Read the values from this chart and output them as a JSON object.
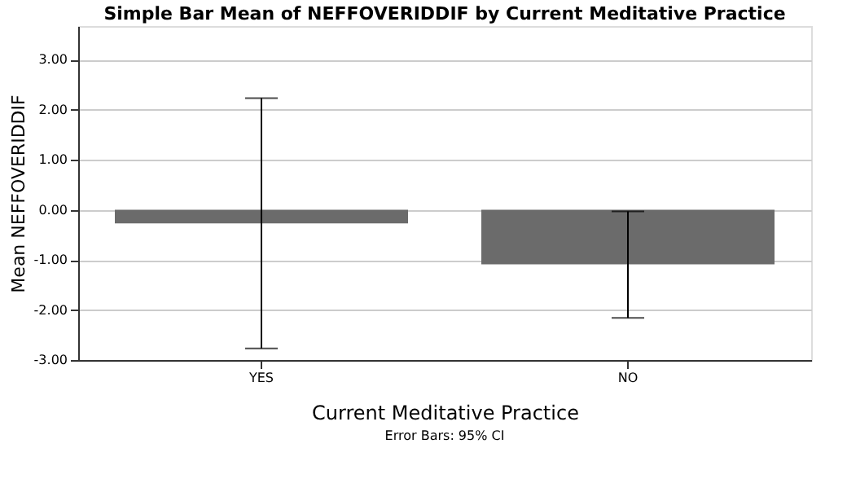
{
  "chart_data": {
    "type": "bar",
    "title": "Simple Bar Mean of NEFFOVERIDDIF by Current Meditative Practice",
    "xlabel": "Current Meditative Practice",
    "ylabel": "Mean NEFFOVERIDDIF",
    "categories": [
      "YES",
      "NO"
    ],
    "series": [
      {
        "color": "#6b6b6b",
        "values": [
          -0.27,
          -1.09
        ],
        "errors": [
          [
            -2.77,
            2.23
          ],
          [
            -2.16,
            -0.03
          ]
        ]
      }
    ],
    "ylim": [
      -3.0,
      3.67
    ],
    "yticks": [
      {
        "value": -3,
        "label": "-3.00"
      },
      {
        "value": -2,
        "label": "-2.00"
      },
      {
        "value": -1,
        "label": "-1.00"
      },
      {
        "value": 0,
        "label": "0.00"
      },
      {
        "value": 1,
        "label": "1.00"
      },
      {
        "value": 2,
        "label": "2.00"
      },
      {
        "value": 3,
        "label": "3.00"
      }
    ],
    "grid": "y",
    "annotations": [
      "Error Bars: 95% CI"
    ]
  }
}
